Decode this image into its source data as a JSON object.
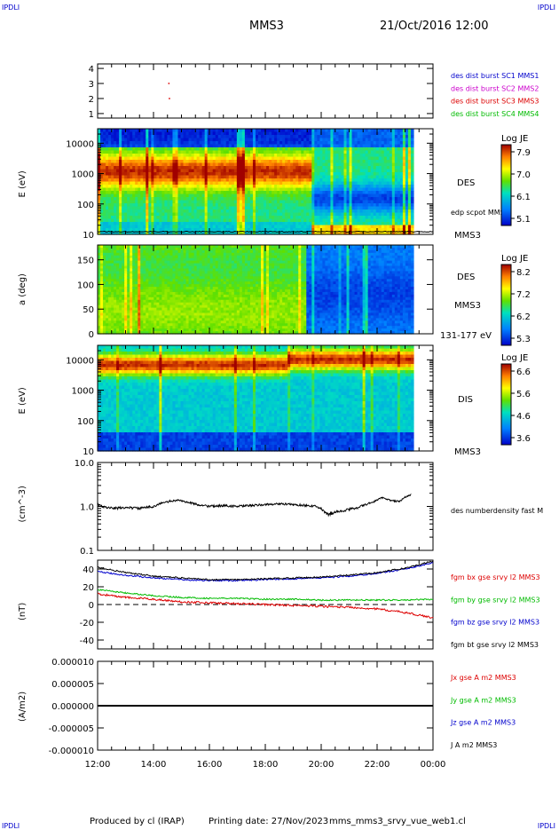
{
  "header": {
    "corner_label": "IPDLI",
    "title": "MMS3",
    "date": "21/Oct/2016 12:00"
  },
  "footer": {
    "produced_by": "Produced by cl (IRAP)",
    "printing_date": "Printing date: 27/Nov/2023",
    "filename": "mms_mms3_srvy_vue_web1.cl",
    "corner_label": "IPDLI"
  },
  "colors": {
    "blue": "#0000cc",
    "magenta": "#cc00cc",
    "red": "#dd0000",
    "green": "#00bb00",
    "black": "#000000"
  },
  "chart_data": [
    {
      "type": "scatter",
      "id": "burst",
      "yticks": [
        "1",
        "2",
        "3",
        "4"
      ],
      "ylim": [
        0.7,
        4.3
      ],
      "xlim": [
        12,
        24
      ],
      "points": [
        {
          "x": 14.55,
          "y": 3.0
        },
        {
          "x": 14.57,
          "y": 2.0
        }
      ],
      "legend": [
        {
          "text": "des dist burst SC1 MMS1",
          "color": "#0000cc"
        },
        {
          "text": "des dist burst SC2 MMS2",
          "color": "#cc00cc"
        },
        {
          "text": "des dist burst SC3 MMS3",
          "color": "#dd0000"
        },
        {
          "text": "des dist burst SC4 MMS4",
          "color": "#00bb00"
        }
      ]
    },
    {
      "type": "heatmap",
      "id": "des_energy",
      "ylabel": "E (eV)",
      "yticks": [
        "10000",
        "1000",
        "100",
        "10"
      ],
      "ylim": [
        10,
        30000
      ],
      "yscale": "log",
      "label": "DES",
      "sublabel": "MMS3",
      "overlay_label": "edp scpot MMS3",
      "colorbar": {
        "title": "Log JE",
        "ticks": [
          "7.9",
          "7.0",
          "6.1",
          "5.1"
        ]
      }
    },
    {
      "type": "heatmap",
      "id": "des_pitch",
      "ylabel": "a (deg)",
      "yticks": [
        "150",
        "100",
        "50",
        "0"
      ],
      "ylim": [
        0,
        180
      ],
      "label": "DES",
      "sublabel": "MMS3",
      "energy_range": "131-177 eV",
      "colorbar": {
        "title": "Log JE",
        "ticks": [
          "8.2",
          "7.2",
          "6.2",
          "5.3"
        ]
      }
    },
    {
      "type": "heatmap",
      "id": "dis_energy",
      "ylabel": "E (eV)",
      "yticks": [
        "10000",
        "1000",
        "100",
        "10"
      ],
      "ylim": [
        10,
        30000
      ],
      "yscale": "log",
      "label": "DIS",
      "sublabel": "MMS3",
      "colorbar": {
        "title": "Log JE",
        "ticks": [
          "6.6",
          "5.6",
          "4.6",
          "3.6"
        ]
      }
    },
    {
      "type": "line",
      "id": "density",
      "ylabel": "(cm^-3)",
      "yticks": [
        "10.0",
        "1.0",
        "0.1"
      ],
      "ylim": [
        0.1,
        10
      ],
      "yscale": "log",
      "legend": [
        {
          "text": "des numberdensity fast M",
          "color": "#000000"
        }
      ],
      "series": [
        {
          "name": "des numberdensity fast M",
          "x": [
            12.0,
            12.3,
            12.6,
            13.0,
            13.5,
            14.0,
            14.3,
            14.6,
            14.9,
            15.2,
            15.6,
            16.0,
            16.5,
            17.0,
            17.5,
            18.0,
            18.5,
            19.0,
            19.5,
            19.8,
            20.0,
            20.2,
            20.4,
            20.7,
            21.0,
            21.3,
            21.6,
            21.9,
            22.2,
            22.5,
            22.8,
            23.0,
            23.2
          ],
          "y": [
            1.1,
            0.95,
            0.9,
            0.95,
            0.9,
            1.0,
            1.2,
            1.3,
            1.4,
            1.25,
            1.1,
            1.0,
            1.05,
            1.0,
            1.05,
            1.1,
            1.15,
            1.1,
            1.05,
            1.0,
            0.9,
            0.65,
            0.72,
            0.78,
            0.85,
            0.95,
            1.1,
            1.3,
            1.6,
            1.35,
            1.3,
            1.6,
            1.85
          ]
        }
      ]
    },
    {
      "type": "line",
      "id": "bfield",
      "ylabel": "(nT)",
      "yticks": [
        "40",
        "20",
        "0",
        "-20",
        "-40"
      ],
      "ylim": [
        -50,
        50
      ],
      "legend": [
        {
          "text": "fgm bx gse srvy l2 MMS3",
          "color": "#dd0000"
        },
        {
          "text": "fgm by gse srvy l2 MMS3",
          "color": "#00bb00"
        },
        {
          "text": "fgm bz gse srvy l2 MMS3",
          "color": "#0000cc"
        },
        {
          "text": "fgm bt gse srvy l2 MMS3",
          "color": "#000000"
        }
      ],
      "series": [
        {
          "name": "fgm bx gse srvy l2 MMS3",
          "x": [
            12,
            13,
            14,
            15,
            16,
            17,
            18,
            19,
            20,
            21,
            22,
            23,
            24
          ],
          "y": [
            12,
            8,
            6,
            3,
            2,
            1,
            0,
            -1,
            -2,
            -3,
            -5,
            -9,
            -15
          ]
        },
        {
          "name": "fgm by gse srvy l2 MMS3",
          "x": [
            12,
            13,
            14,
            15,
            16,
            17,
            18,
            19,
            20,
            21,
            22,
            23,
            24
          ],
          "y": [
            17,
            13,
            10,
            8,
            7,
            7,
            6,
            6,
            5,
            5,
            5,
            5,
            6
          ]
        },
        {
          "name": "fgm bz gse srvy l2 MMS3",
          "x": [
            12,
            13,
            14,
            15,
            16,
            17,
            18,
            19,
            20,
            21,
            22,
            23,
            24
          ],
          "y": [
            37,
            33,
            30,
            28,
            27,
            27,
            28,
            29,
            30,
            32,
            35,
            40,
            47
          ]
        },
        {
          "name": "fgm bt gse srvy l2 MMS3",
          "x": [
            12,
            13,
            14,
            15,
            16,
            17,
            18,
            19,
            20,
            21,
            22,
            23,
            24
          ],
          "y": [
            42,
            36,
            32,
            30,
            28,
            28,
            29,
            30,
            31,
            33,
            36,
            41,
            49
          ]
        }
      ]
    },
    {
      "type": "line",
      "id": "current",
      "ylabel": "(A/m2)",
      "yticks": [
        "0.000010",
        "0.000005",
        "0.000000",
        "-0.000005",
        "-0.000010"
      ],
      "ylim": [
        -1e-05,
        1e-05
      ],
      "xticks": [
        "12:00",
        "14:00",
        "16:00",
        "18:00",
        "20:00",
        "22:00",
        "00:00"
      ],
      "xlim": [
        12,
        24
      ],
      "legend": [
        {
          "text": "Jx gse A m2 MMS3",
          "color": "#dd0000"
        },
        {
          "text": "Jy gse A m2 MMS3",
          "color": "#00bb00"
        },
        {
          "text": "Jz gse A m2 MMS3",
          "color": "#0000cc"
        },
        {
          "text": "J A m2 MMS3",
          "color": "#000000"
        }
      ],
      "series": [
        {
          "name": "J A m2 MMS3",
          "x": [
            12,
            24
          ],
          "y": [
            0,
            0
          ]
        }
      ]
    }
  ]
}
